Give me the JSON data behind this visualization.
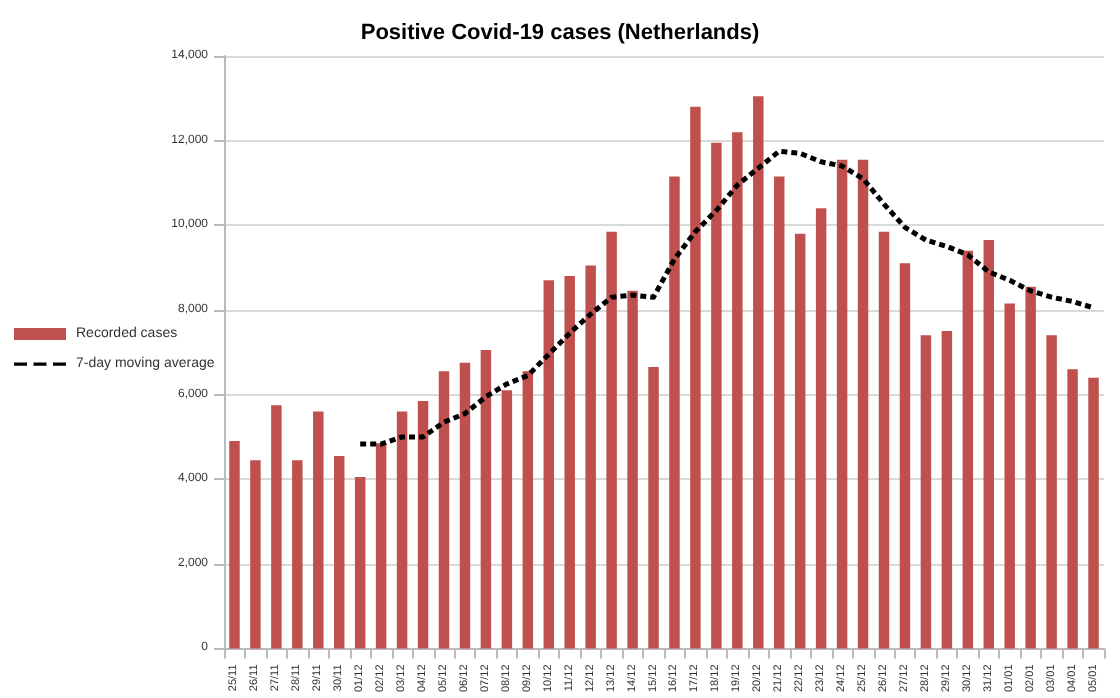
{
  "chart_data": {
    "type": "bar",
    "title": "Positive Covid-19 cases (Netherlands)",
    "categories": [
      "25/11",
      "26/11",
      "27/11",
      "28/11",
      "29/11",
      "30/11",
      "01/12",
      "02/12",
      "03/12",
      "04/12",
      "05/12",
      "06/12",
      "07/12",
      "08/12",
      "09/12",
      "10/12",
      "11/12",
      "12/12",
      "13/12",
      "14/12",
      "15/12",
      "16/12",
      "17/12",
      "18/12",
      "19/12",
      "20/12",
      "21/12",
      "22/12",
      "23/12",
      "24/12",
      "25/12",
      "26/12",
      "27/12",
      "28/12",
      "29/12",
      "30/12",
      "31/12",
      "01/01",
      "02/01",
      "03/01",
      "04/01",
      "05/01"
    ],
    "series": [
      {
        "name": "Recorded cases",
        "color": "#c0504d",
        "values": [
          4900,
          4450,
          5750,
          4450,
          5600,
          4550,
          4050,
          4850,
          5600,
          5850,
          6550,
          6750,
          7050,
          6100,
          6550,
          8700,
          8800,
          9050,
          9850,
          8450,
          6650,
          11150,
          12800,
          11950,
          12200,
          13050,
          11150,
          9800,
          10400,
          11550,
          11550,
          9850,
          9100,
          7400,
          7500,
          9400,
          9650,
          8150,
          8550,
          7400,
          6600,
          6400
        ]
      },
      {
        "name": "7-day moving average",
        "type": "line",
        "color": "#000000",
        "line_style": "dashed",
        "marker": "none",
        "values": [
          null,
          null,
          null,
          null,
          null,
          null,
          4830,
          4830,
          5000,
          5000,
          5350,
          5550,
          5950,
          6250,
          6450,
          6950,
          7450,
          7900,
          8300,
          8350,
          8300,
          9200,
          9850,
          10350,
          10950,
          11350,
          11750,
          11700,
          11500,
          11400,
          11100,
          10500,
          9950,
          9650,
          9500,
          9300,
          8900,
          8700,
          8450,
          8300,
          8200,
          8050
        ]
      }
    ],
    "ylim": [
      0,
      14000
    ],
    "yticks": [
      {
        "value": 0,
        "label": "0"
      },
      {
        "value": 2000,
        "label": "2,000"
      },
      {
        "value": 4000,
        "label": "4,000"
      },
      {
        "value": 6000,
        "label": "6,000"
      },
      {
        "value": 8000,
        "label": "8,000"
      },
      {
        "value": 10000,
        "label": "10,000"
      },
      {
        "value": 12000,
        "label": "12,000"
      },
      {
        "value": 14000,
        "label": "14,000"
      }
    ],
    "grid": "y",
    "legend": "left"
  }
}
